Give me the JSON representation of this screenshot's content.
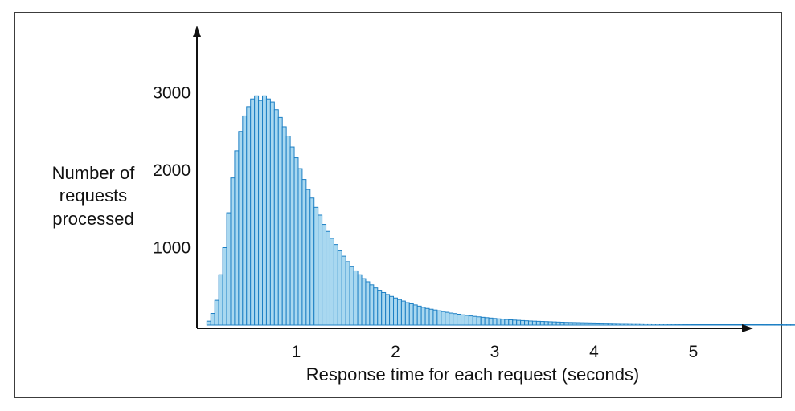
{
  "chart_data": {
    "type": "bar",
    "xlabel": "Response time for each request (seconds)",
    "ylabel": [
      "Number of",
      "requests",
      "processed"
    ],
    "xlim": [
      0,
      5.4
    ],
    "ylim": [
      0,
      3600
    ],
    "x_ticks": [
      1,
      2,
      3,
      4,
      5
    ],
    "y_ticks": [
      1000,
      2000,
      3000
    ],
    "grid": false,
    "colors": {
      "bar_fill": "#a9d8f0",
      "bar_stroke": "#1c7fc4",
      "axis": "#111111"
    },
    "bin_width": 0.04,
    "bin_start": 0.1,
    "counts": [
      50,
      150,
      320,
      650,
      1000,
      1450,
      1900,
      2250,
      2500,
      2700,
      2820,
      2920,
      2960,
      2900,
      2960,
      2920,
      2880,
      2780,
      2680,
      2560,
      2440,
      2300,
      2160,
      2020,
      1880,
      1750,
      1640,
      1520,
      1420,
      1300,
      1210,
      1120,
      1040,
      960,
      890,
      820,
      760,
      700,
      650,
      600,
      560,
      520,
      480,
      450,
      420,
      395,
      370,
      350,
      330,
      310,
      290,
      275,
      260,
      245,
      230,
      215,
      205,
      195,
      185,
      175,
      165,
      155,
      148,
      140,
      132,
      125,
      118,
      112,
      106,
      100,
      95,
      90,
      85,
      80,
      76,
      72,
      68,
      64,
      61,
      58,
      55,
      52,
      50,
      48,
      46,
      44,
      42,
      40,
      38,
      36,
      34,
      33,
      32,
      31,
      30,
      29,
      28,
      27,
      26,
      25,
      24,
      23,
      22,
      21,
      20,
      20,
      19,
      18,
      18,
      17,
      16,
      16,
      15,
      15,
      14,
      14,
      13,
      13,
      12,
      12,
      11,
      11,
      10,
      10,
      10,
      9,
      9,
      9,
      8,
      8,
      8,
      8,
      7,
      7,
      7,
      7,
      6,
      6,
      6,
      6,
      5,
      5,
      5,
      5,
      5,
      4,
      4,
      4
    ]
  }
}
